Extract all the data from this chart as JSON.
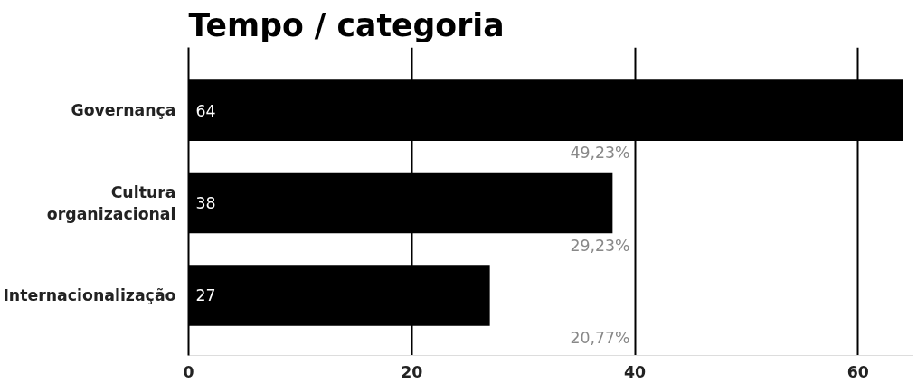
{
  "chart_data": {
    "type": "bar",
    "orientation": "horizontal",
    "title": "Tempo / categoria",
    "categories": [
      "Governança",
      "Cultura organizacional",
      "Internacionalização"
    ],
    "values": [
      64,
      38,
      27
    ],
    "color": "#000000",
    "data_labels": true,
    "annotations": [
      "49,23%",
      "29,23%",
      "20,77%"
    ],
    "xlim": [
      0,
      65
    ],
    "xticks": [
      0,
      20,
      40,
      60
    ],
    "grid": "x"
  }
}
